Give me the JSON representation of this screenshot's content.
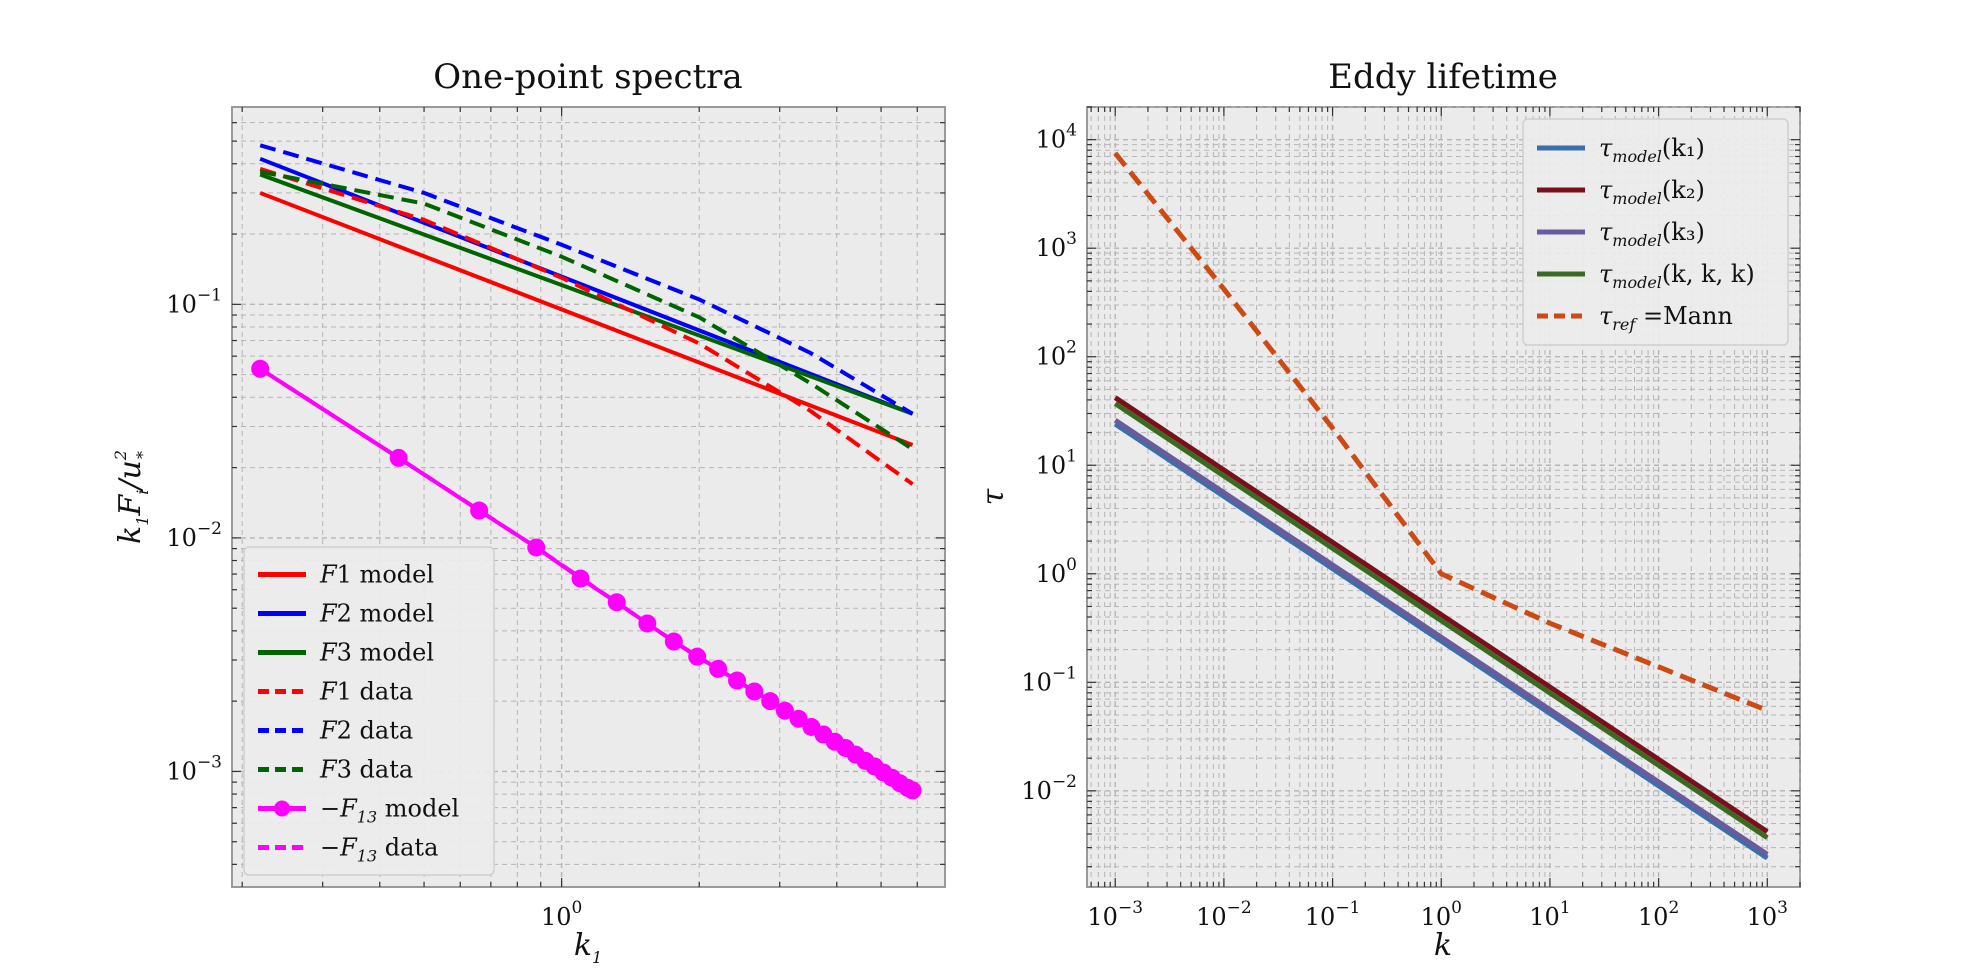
{
  "chart_data": [
    {
      "type": "line",
      "title": "One-point spectra",
      "xlabel": "k1",
      "ylabel": "k1Fi/u*^2",
      "xscale": "log",
      "yscale": "log",
      "xlim": [
        0.19,
        6.9
      ],
      "ylim": [
        0.00032,
        0.7
      ],
      "grid": true,
      "legend_position": "lower-left",
      "x_ticks": [
        {
          "value": 1,
          "base": "10",
          "exp": "0"
        }
      ],
      "y_ticks": [
        {
          "value": 0.1,
          "base": "10",
          "exp": "−1"
        },
        {
          "value": 0.01,
          "base": "10",
          "exp": "−2"
        },
        {
          "value": 0.001,
          "base": "10",
          "exp": "−3"
        }
      ],
      "series": [
        {
          "name": "F1 model",
          "label_main": "F",
          "label_rest": "1 model",
          "color": "#ff0000",
          "style": "solid",
          "x": [
            0.219,
            5.86
          ],
          "y": [
            0.3,
            0.025
          ]
        },
        {
          "name": "F2 model",
          "label_main": "F",
          "label_rest": "2 model",
          "color": "#0000ff",
          "style": "solid",
          "x": [
            0.219,
            5.86
          ],
          "y": [
            0.42,
            0.034
          ]
        },
        {
          "name": "F3 model",
          "label_main": "F",
          "label_rest": "3 model",
          "color": "#006400",
          "style": "solid",
          "x": [
            0.219,
            5.86
          ],
          "y": [
            0.36,
            0.034
          ]
        },
        {
          "name": "F1 data",
          "label_main": "F",
          "label_rest": "1 data",
          "color": "#ff0000",
          "style": "dashed",
          "x": [
            0.219,
            0.5,
            1.0,
            2.0,
            3.5,
            5.86
          ],
          "y": [
            0.38,
            0.23,
            0.13,
            0.068,
            0.035,
            0.017
          ]
        },
        {
          "name": "F2 data",
          "label_main": "F",
          "label_rest": "2 data",
          "color": "#0000ff",
          "style": "dashed",
          "x": [
            0.219,
            0.5,
            1.0,
            2.0,
            3.5,
            5.86
          ],
          "y": [
            0.48,
            0.3,
            0.18,
            0.105,
            0.062,
            0.034
          ]
        },
        {
          "name": "F3 data",
          "label_main": "F",
          "label_rest": "3 data",
          "color": "#006400",
          "style": "dashed",
          "x": [
            0.219,
            0.5,
            1.0,
            2.0,
            3.5,
            5.86
          ],
          "y": [
            0.37,
            0.27,
            0.16,
            0.088,
            0.046,
            0.024
          ]
        },
        {
          "name": "−F13 model",
          "label_main": "−F",
          "label_sub": "13",
          "label_rest": " model",
          "color": "#ff00ff",
          "style": "solid",
          "marker": "circle",
          "x": [
            0.219,
            0.44,
            0.66,
            0.88,
            1.1,
            1.32,
            1.54,
            1.76,
            1.98,
            2.2,
            2.42,
            2.64,
            2.86,
            3.08,
            3.3,
            3.52,
            3.74,
            3.96,
            4.18,
            4.4,
            4.62,
            4.84,
            5.06,
            5.28,
            5.5,
            5.72,
            5.86
          ],
          "y": [
            0.053,
            0.022,
            0.0131,
            0.0091,
            0.0067,
            0.0053,
            0.0043,
            0.0036,
            0.0031,
            0.00275,
            0.00245,
            0.0022,
            0.002,
            0.00182,
            0.00168,
            0.00155,
            0.00144,
            0.00134,
            0.00126,
            0.00118,
            0.00111,
            0.00105,
            0.00099,
            0.00094,
            0.00089,
            0.00085,
            0.00083
          ]
        },
        {
          "name": "−F13 data",
          "label_main": "−F",
          "label_sub": "13",
          "label_rest": " data",
          "color": "#ff00ff",
          "style": "dashed",
          "x": [
            0.219,
            0.44,
            0.88,
            1.76,
            3.52,
            5.86
          ],
          "y": [
            0.053,
            0.022,
            0.0091,
            0.0036,
            0.00155,
            0.00083
          ]
        }
      ]
    },
    {
      "type": "line",
      "title": "Eddy lifetime",
      "xlabel": "k",
      "ylabel": "τ",
      "xscale": "log",
      "yscale": "log",
      "xlim": [
        0.00055,
        2000
      ],
      "ylim": [
        0.0013,
        20000
      ],
      "grid": true,
      "legend_position": "top-right",
      "x_ticks": [
        {
          "value": 0.001,
          "base": "10",
          "exp": "−3"
        },
        {
          "value": 0.01,
          "base": "10",
          "exp": "−2"
        },
        {
          "value": 0.1,
          "base": "10",
          "exp": "−1"
        },
        {
          "value": 1,
          "base": "10",
          "exp": "0"
        },
        {
          "value": 10,
          "base": "10",
          "exp": "1"
        },
        {
          "value": 100,
          "base": "10",
          "exp": "2"
        },
        {
          "value": 1000,
          "base": "10",
          "exp": "3"
        }
      ],
      "y_ticks": [
        {
          "value": 10000,
          "base": "10",
          "exp": "4"
        },
        {
          "value": 1000,
          "base": "10",
          "exp": "3"
        },
        {
          "value": 100,
          "base": "10",
          "exp": "2"
        },
        {
          "value": 10,
          "base": "10",
          "exp": "1"
        },
        {
          "value": 1,
          "base": "10",
          "exp": "0"
        },
        {
          "value": 0.1,
          "base": "10",
          "exp": "−1"
        },
        {
          "value": 0.01,
          "base": "10",
          "exp": "−2"
        }
      ],
      "series": [
        {
          "name": "τmodel(k1)",
          "label_main": "τ",
          "label_sub": "model",
          "label_rest": "(k₁)",
          "color": "#3a6fa8",
          "style": "solid",
          "x": [
            0.001,
            1000
          ],
          "y": [
            24,
            0.0024
          ]
        },
        {
          "name": "τmodel(k2)",
          "label_main": "τ",
          "label_sub": "model",
          "label_rest": "(k₂)",
          "color": "#7a0f1e",
          "style": "solid",
          "x": [
            0.001,
            1000
          ],
          "y": [
            42,
            0.0042
          ]
        },
        {
          "name": "τmodel(k3)",
          "label_main": "τ",
          "label_sub": "model",
          "label_rest": "(k₃)",
          "color": "#6a5a9e",
          "style": "solid",
          "x": [
            0.001,
            1000
          ],
          "y": [
            26,
            0.0026
          ]
        },
        {
          "name": "τmodel(k,k,k)",
          "label_main": "τ",
          "label_sub": "model",
          "label_rest": "(k, k, k)",
          "color": "#3b6b22",
          "style": "solid",
          "x": [
            0.001,
            1000
          ],
          "y": [
            37,
            0.0037
          ]
        },
        {
          "name": "τref =Mann",
          "label_main": "τ",
          "label_sub": "ref",
          "label_rest": " =Mann",
          "color": "#cc4a14",
          "style": "dashed",
          "x": [
            0.001,
            0.01,
            0.1,
            1,
            10,
            1000
          ],
          "y": [
            7500,
            420,
            22,
            1.0,
            0.35,
            0.055
          ]
        }
      ]
    }
  ]
}
